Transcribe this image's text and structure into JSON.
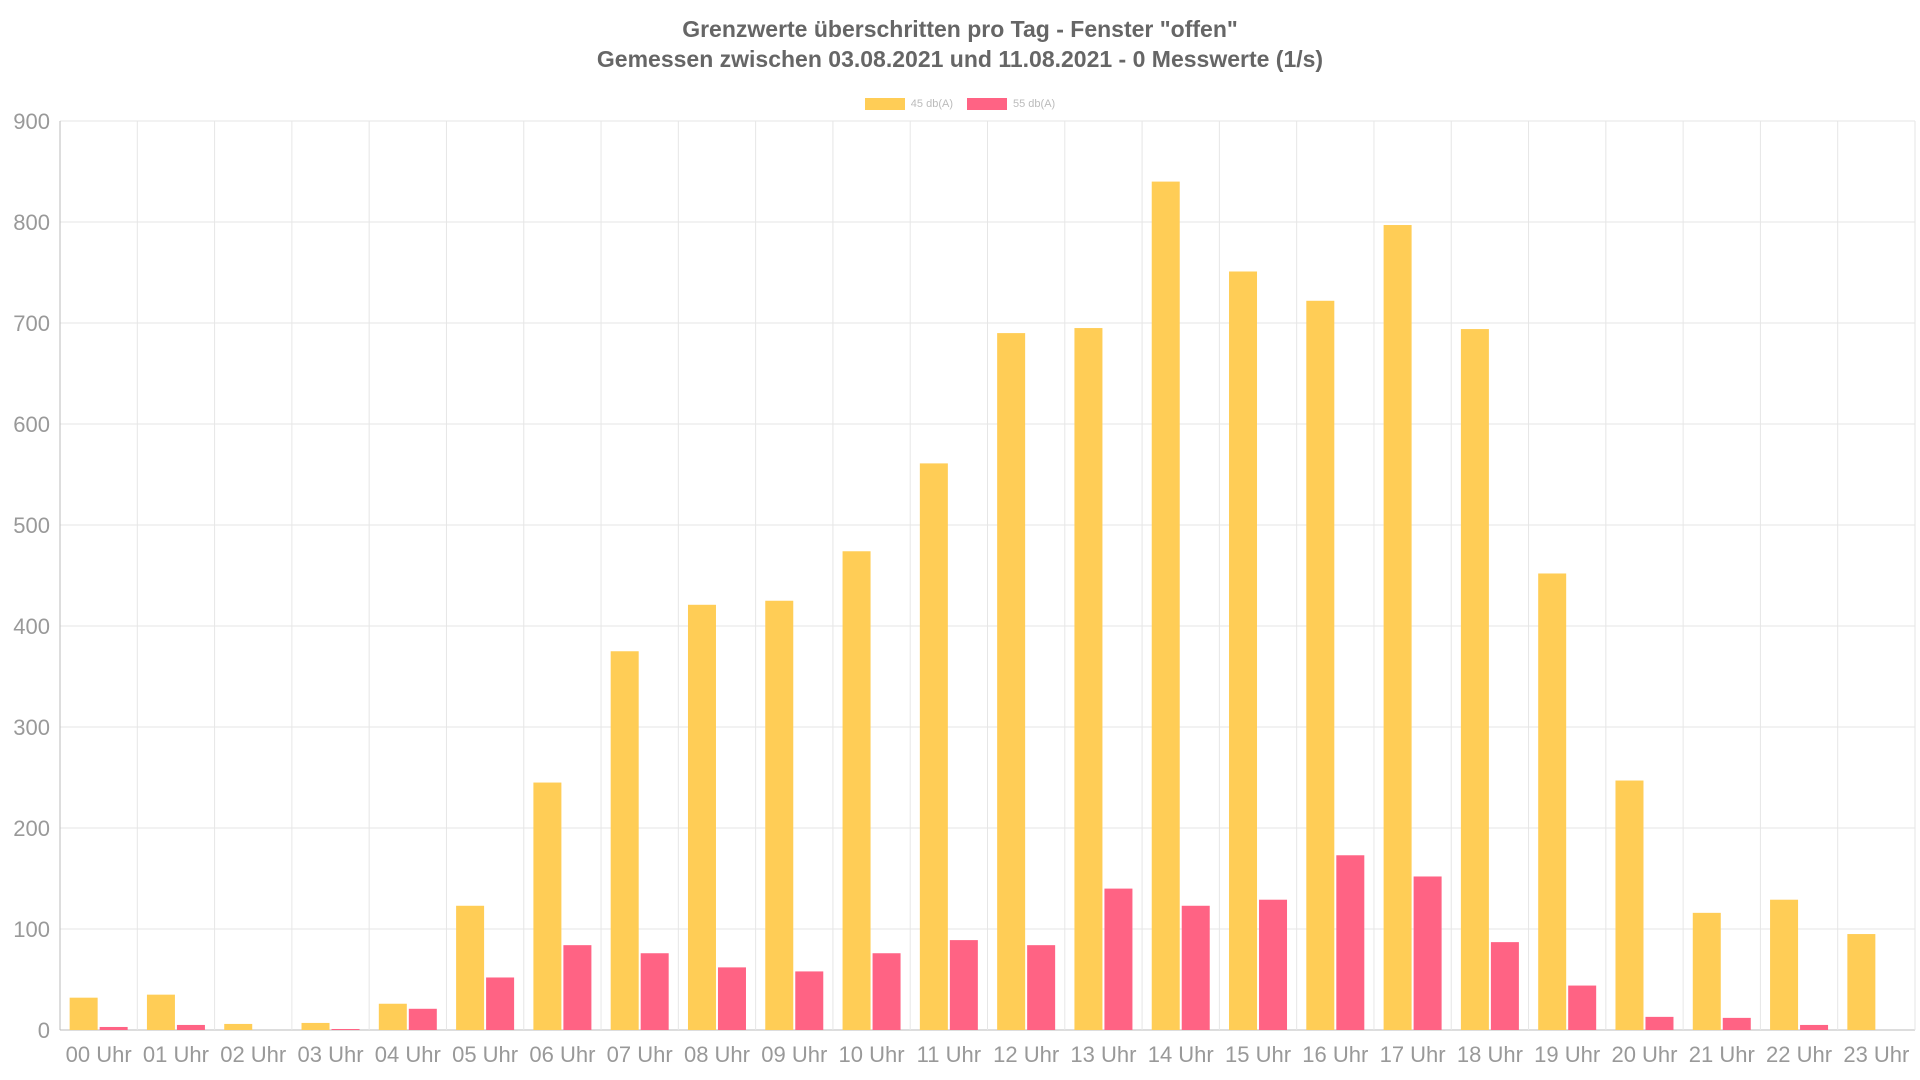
{
  "chart_data": {
    "type": "bar",
    "title": "Grenzwerte überschritten pro Tag - Fenster \"offen\"",
    "subtitle": "Gemessen zwischen 03.08.2021 und 11.08.2021 - 0 Messwerte (1/s)",
    "categories": [
      "00 Uhr",
      "01 Uhr",
      "02 Uhr",
      "03 Uhr",
      "04 Uhr",
      "05 Uhr",
      "06 Uhr",
      "07 Uhr",
      "08 Uhr",
      "09 Uhr",
      "10 Uhr",
      "11 Uhr",
      "12 Uhr",
      "13 Uhr",
      "14 Uhr",
      "15 Uhr",
      "16 Uhr",
      "17 Uhr",
      "18 Uhr",
      "19 Uhr",
      "20 Uhr",
      "21 Uhr",
      "22 Uhr",
      "23 Uhr"
    ],
    "series": [
      {
        "name": "45 db(A)",
        "color": "#ffcd56",
        "values": [
          32,
          35,
          6,
          7,
          26,
          123,
          245,
          375,
          421,
          425,
          474,
          561,
          690,
          695,
          840,
          751,
          722,
          797,
          694,
          452,
          247,
          116,
          129,
          95
        ]
      },
      {
        "name": "55 db(A)",
        "color": "#ff6384",
        "values": [
          3,
          5,
          0,
          1,
          21,
          52,
          84,
          76,
          62,
          58,
          76,
          89,
          84,
          140,
          123,
          129,
          173,
          152,
          87,
          44,
          13,
          12,
          5,
          0
        ]
      }
    ],
    "ylim": [
      0,
      900
    ],
    "yticks": [
      0,
      100,
      200,
      300,
      400,
      500,
      600,
      700,
      800,
      900
    ],
    "grid": true,
    "legend": "top-center"
  }
}
